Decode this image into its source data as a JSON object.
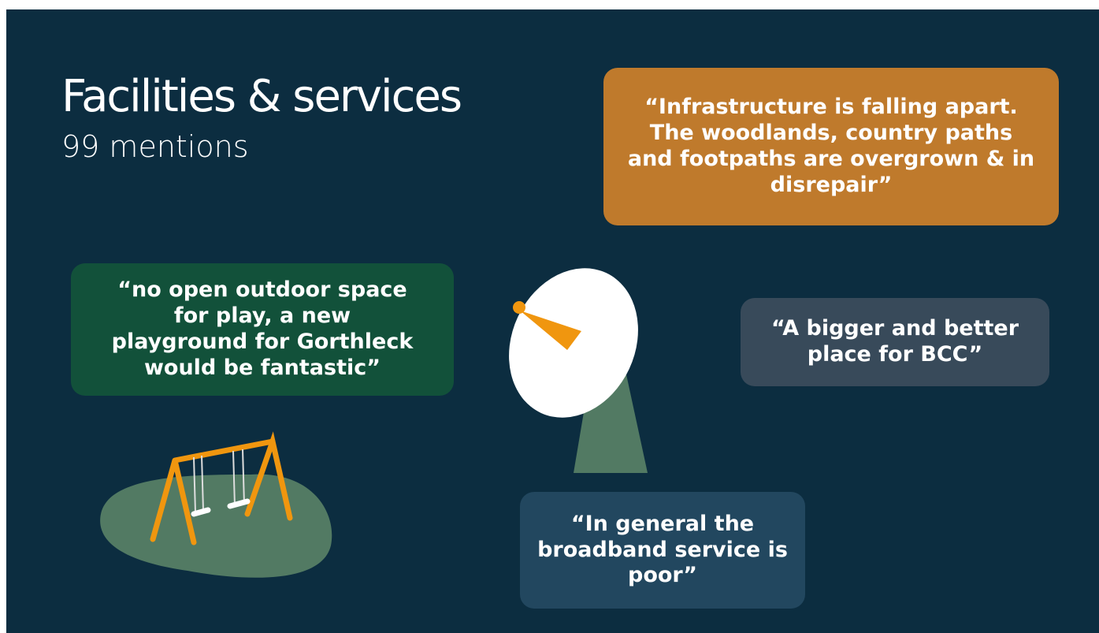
{
  "header": {
    "title": "Facilities & services",
    "subtitle": "99 mentions"
  },
  "quotes": [
    {
      "text": "“Infrastructure is falling apart. The woodlands, country paths and footpaths are overgrown & in disrepair”"
    },
    {
      "text": "“no open outdoor space for play, a new playground for Gorthleck would be fantastic”"
    },
    {
      "text": "“A bigger and better place for BCC”"
    },
    {
      "text": "“In general the broadband service is poor”"
    }
  ]
}
